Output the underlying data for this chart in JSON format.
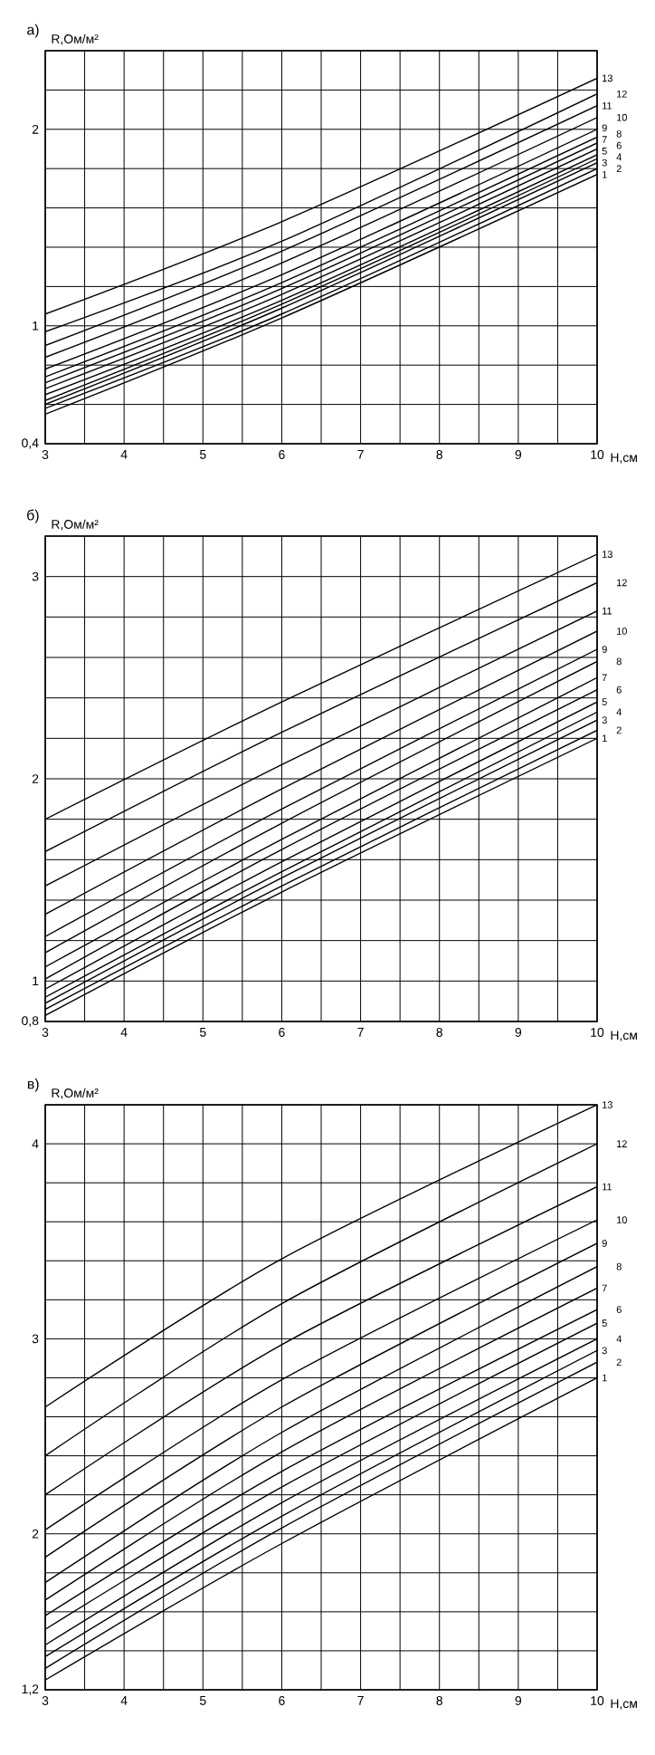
{
  "chart_data": [
    {
      "type": "line",
      "title": "а)",
      "ylabel": "R,Ом/м²",
      "xlabel": "H,см",
      "line_style": "solid",
      "marker": "none",
      "grid": true,
      "x": [
        3,
        6,
        10
      ],
      "xlim": [
        3,
        10
      ],
      "ylim": [
        0.4,
        2.4
      ],
      "xticks": [
        3,
        {
          "value": 3.5,
          "label": null
        },
        4,
        {
          "value": 4.5,
          "label": null
        },
        5,
        {
          "value": 5.5,
          "label": null
        },
        6,
        {
          "value": 6.5,
          "label": null
        },
        7,
        {
          "value": 7.5,
          "label": null
        },
        8,
        {
          "value": 8.5,
          "label": null
        },
        9,
        {
          "value": 9.5,
          "label": null
        },
        10
      ],
      "yticks": [
        {
          "value": 0.4,
          "label": "0,4"
        },
        {
          "value": 0.6,
          "label": null
        },
        {
          "value": 0.8,
          "label": null
        },
        1,
        {
          "value": 1.2,
          "label": null
        },
        {
          "value": 1.4,
          "label": null
        },
        {
          "value": 1.6,
          "label": null
        },
        {
          "value": 1.8,
          "label": null
        },
        2,
        {
          "value": 2.2,
          "label": null
        },
        {
          "value": 2.4,
          "label": null
        }
      ],
      "series": [
        {
          "name": "1",
          "color": "#000000",
          "values": [
            0.55,
            1.04,
            1.77
          ]
        },
        {
          "name": "2",
          "color": "#000000",
          "values": [
            0.58,
            1.06,
            1.8
          ]
        },
        {
          "name": "3",
          "color": "#000000",
          "values": [
            0.6,
            1.09,
            1.83
          ]
        },
        {
          "name": "4",
          "color": "#000000",
          "values": [
            0.62,
            1.11,
            1.85
          ]
        },
        {
          "name": "5",
          "color": "#000000",
          "values": [
            0.65,
            1.13,
            1.87
          ]
        },
        {
          "name": "6",
          "color": "#000000",
          "values": [
            0.68,
            1.16,
            1.9
          ]
        },
        {
          "name": "7",
          "color": "#000000",
          "values": [
            0.71,
            1.19,
            1.93
          ]
        },
        {
          "name": "8",
          "color": "#000000",
          "values": [
            0.74,
            1.22,
            1.96
          ]
        },
        {
          "name": "9",
          "color": "#000000",
          "values": [
            0.78,
            1.26,
            2.0
          ]
        },
        {
          "name": "10",
          "color": "#000000",
          "values": [
            0.84,
            1.32,
            2.06
          ]
        },
        {
          "name": "11",
          "color": "#000000",
          "values": [
            0.9,
            1.38,
            2.12
          ]
        },
        {
          "name": "12",
          "color": "#000000",
          "values": [
            0.97,
            1.43,
            2.18
          ]
        },
        {
          "name": "13",
          "color": "#000000",
          "values": [
            1.06,
            1.53,
            2.26
          ]
        }
      ]
    },
    {
      "type": "line",
      "title": "б)",
      "ylabel": "R,Ом/м²",
      "xlabel": "H,см",
      "line_style": "solid",
      "marker": "none",
      "grid": true,
      "x": [
        3,
        6,
        10
      ],
      "xlim": [
        3,
        10
      ],
      "ylim": [
        0.8,
        3.2
      ],
      "xticks": [
        3,
        {
          "value": 3.5,
          "label": null
        },
        4,
        {
          "value": 4.5,
          "label": null
        },
        5,
        {
          "value": 5.5,
          "label": null
        },
        6,
        {
          "value": 6.5,
          "label": null
        },
        7,
        {
          "value": 7.5,
          "label": null
        },
        8,
        {
          "value": 8.5,
          "label": null
        },
        9,
        {
          "value": 9.5,
          "label": null
        },
        10
      ],
      "yticks": [
        {
          "value": 0.8,
          "label": "0,8"
        },
        1,
        {
          "value": 1.2,
          "label": null
        },
        {
          "value": 1.4,
          "label": null
        },
        {
          "value": 1.6,
          "label": null
        },
        {
          "value": 1.8,
          "label": null
        },
        2,
        {
          "value": 2.2,
          "label": null
        },
        {
          "value": 2.4,
          "label": null
        },
        {
          "value": 2.6,
          "label": null
        },
        {
          "value": 2.8,
          "label": null
        },
        3,
        {
          "value": 3.2,
          "label": null
        }
      ],
      "series": [
        {
          "name": "1",
          "color": "#000000",
          "values": [
            0.83,
            1.44,
            2.2
          ]
        },
        {
          "name": "2",
          "color": "#000000",
          "values": [
            0.86,
            1.47,
            2.24
          ]
        },
        {
          "name": "3",
          "color": "#000000",
          "values": [
            0.89,
            1.51,
            2.29
          ]
        },
        {
          "name": "4",
          "color": "#000000",
          "values": [
            0.92,
            1.54,
            2.33
          ]
        },
        {
          "name": "5",
          "color": "#000000",
          "values": [
            0.96,
            1.59,
            2.38
          ]
        },
        {
          "name": "6",
          "color": "#000000",
          "values": [
            1.01,
            1.65,
            2.44
          ]
        },
        {
          "name": "7",
          "color": "#000000",
          "values": [
            1.07,
            1.7,
            2.5
          ]
        },
        {
          "name": "8",
          "color": "#000000",
          "values": [
            1.14,
            1.78,
            2.58
          ]
        },
        {
          "name": "9",
          "color": "#000000",
          "values": [
            1.22,
            1.85,
            2.64
          ]
        },
        {
          "name": "10",
          "color": "#000000",
          "values": [
            1.33,
            1.95,
            2.73
          ]
        },
        {
          "name": "11",
          "color": "#000000",
          "values": [
            1.47,
            2.07,
            2.83
          ]
        },
        {
          "name": "12",
          "color": "#000000",
          "values": [
            1.64,
            2.23,
            2.97
          ]
        },
        {
          "name": "13",
          "color": "#000000",
          "values": [
            1.8,
            2.38,
            3.11
          ]
        }
      ]
    },
    {
      "type": "line",
      "title": "в)",
      "ylabel": "R,Ом/м²",
      "xlabel": "H,см",
      "line_style": "solid",
      "marker": "none",
      "grid": true,
      "x": [
        3,
        6,
        10
      ],
      "xlim": [
        3,
        10
      ],
      "ylim": [
        1.2,
        4.2
      ],
      "xticks": [
        3,
        {
          "value": 3.5,
          "label": null
        },
        4,
        {
          "value": 4.5,
          "label": null
        },
        5,
        {
          "value": 5.5,
          "label": null
        },
        6,
        {
          "value": 6.5,
          "label": null
        },
        7,
        {
          "value": 7.5,
          "label": null
        },
        8,
        {
          "value": 8.5,
          "label": null
        },
        9,
        {
          "value": 9.5,
          "label": null
        },
        10
      ],
      "yticks": [
        {
          "value": 1.2,
          "label": "1,2"
        },
        {
          "value": 1.4,
          "label": null
        },
        {
          "value": 1.6,
          "label": null
        },
        {
          "value": 1.8,
          "label": null
        },
        2,
        {
          "value": 2.2,
          "label": null
        },
        {
          "value": 2.4,
          "label": null
        },
        {
          "value": 2.6,
          "label": null
        },
        {
          "value": 2.8,
          "label": null
        },
        3,
        {
          "value": 3.2,
          "label": null
        },
        {
          "value": 3.4,
          "label": null
        },
        {
          "value": 3.6,
          "label": null
        },
        {
          "value": 3.8,
          "label": null
        },
        4,
        {
          "value": 4.2,
          "label": null
        }
      ],
      "series": [
        {
          "name": "1",
          "color": "#000000",
          "values": [
            1.25,
            1.95,
            2.8
          ]
        },
        {
          "name": "2",
          "color": "#000000",
          "values": [
            1.31,
            2.03,
            2.88
          ]
        },
        {
          "name": "3",
          "color": "#000000",
          "values": [
            1.37,
            2.09,
            2.94
          ]
        },
        {
          "name": "4",
          "color": "#000000",
          "values": [
            1.43,
            2.16,
            3.0
          ]
        },
        {
          "name": "5",
          "color": "#000000",
          "values": [
            1.51,
            2.24,
            3.08
          ]
        },
        {
          "name": "6",
          "color": "#000000",
          "values": [
            1.58,
            2.32,
            3.15
          ]
        },
        {
          "name": "7",
          "color": "#000000",
          "values": [
            1.66,
            2.42,
            3.26
          ]
        },
        {
          "name": "8",
          "color": "#000000",
          "values": [
            1.75,
            2.52,
            3.37
          ]
        },
        {
          "name": "9",
          "color": "#000000",
          "values": [
            1.88,
            2.65,
            3.49
          ]
        },
        {
          "name": "10",
          "color": "#000000",
          "values": [
            2.02,
            2.79,
            3.61
          ]
        },
        {
          "name": "11",
          "color": "#000000",
          "values": [
            2.2,
            2.97,
            3.78
          ]
        },
        {
          "name": "12",
          "color": "#000000",
          "values": [
            2.4,
            3.18,
            4.0
          ]
        },
        {
          "name": "13",
          "color": "#000000",
          "values": [
            2.65,
            3.41,
            4.2
          ]
        }
      ]
    }
  ]
}
